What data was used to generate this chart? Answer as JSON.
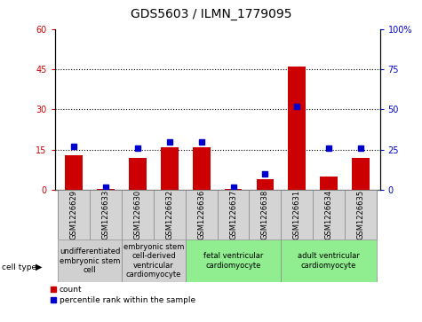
{
  "title": "GDS5603 / ILMN_1779095",
  "samples": [
    "GSM1226629",
    "GSM1226633",
    "GSM1226630",
    "GSM1226632",
    "GSM1226636",
    "GSM1226637",
    "GSM1226638",
    "GSM1226631",
    "GSM1226634",
    "GSM1226635"
  ],
  "counts": [
    13,
    0.5,
    12,
    16,
    16,
    0.5,
    4,
    46,
    5,
    12
  ],
  "percentiles": [
    27,
    2,
    26,
    30,
    30,
    1.5,
    10,
    52,
    26,
    26
  ],
  "ylim_left": [
    0,
    60
  ],
  "ylim_right": [
    0,
    100
  ],
  "yticks_left": [
    0,
    15,
    30,
    45,
    60
  ],
  "yticks_right": [
    0,
    25,
    50,
    75,
    100
  ],
  "bar_color": "#cc0000",
  "dot_color": "#0000cc",
  "cell_types": [
    {
      "label": "undifferentiated\nembryonic stem\ncell",
      "span": [
        0,
        2
      ],
      "color": "#d0d0d0"
    },
    {
      "label": "embryonic stem\ncell-derived\nventricular\ncardiomyocyte",
      "span": [
        2,
        4
      ],
      "color": "#d0d0d0"
    },
    {
      "label": "fetal ventricular\ncardiomyocyte",
      "span": [
        4,
        7
      ],
      "color": "#90ee90"
    },
    {
      "label": "adult ventricular\ncardiomyocyte",
      "span": [
        7,
        10
      ],
      "color": "#90ee90"
    }
  ],
  "legend_count_label": "count",
  "legend_pct_label": "percentile rank within the sample",
  "cell_type_label": "cell type",
  "title_fontsize": 10,
  "tick_fontsize": 7,
  "label_fontsize": 7,
  "sample_fontsize": 6,
  "ct_fontsize": 6
}
